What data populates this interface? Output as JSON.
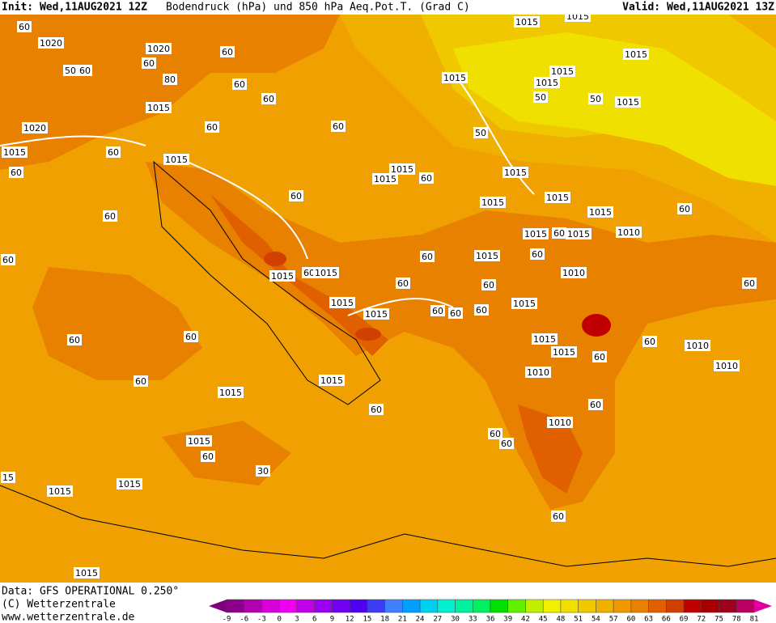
{
  "header": {
    "init": "Init: Wed,11AUG2021 12Z",
    "title": "Bodendruck (hPa) und 850 hPa Aeq.Pot.T. (Grad C)",
    "valid": "Valid: Wed,11AUG2021 13Z"
  },
  "footer": {
    "data": "Data: GFS OPERATIONAL 0.250°",
    "copyright": "(C) Wetterzentrale",
    "url": "www.wetterzentrale.de"
  },
  "contour_labels": [
    "1015",
    "1015",
    "1015",
    "1020",
    "60",
    "1020",
    "60",
    "50",
    "60",
    "80",
    "60",
    "60",
    "1015",
    "1015",
    "1015",
    "50",
    "50",
    "1015",
    "1015",
    "60",
    "60",
    "1020",
    "60",
    "50",
    "1015",
    "60",
    "1015",
    "60",
    "1015",
    "1015",
    "60",
    "1015",
    "60",
    "1015",
    "1015",
    "60",
    "1015",
    "60",
    "1010",
    "1015",
    "60",
    "1015",
    "60",
    "1015",
    "60",
    "60",
    "1015",
    "60",
    "1015",
    "1010",
    "60",
    "60",
    "60",
    "1015",
    "1015",
    "1015",
    "60",
    "60",
    "60",
    "60",
    "60",
    "1015",
    "1015",
    "60",
    "1010",
    "60",
    "1010",
    "1010",
    "60",
    "1015",
    "1015",
    "60",
    "60",
    "1010",
    "60",
    "60",
    "1015",
    "60",
    "30",
    "15",
    "1015",
    "1015",
    "60",
    "1015"
  ],
  "colorbar": {
    "ticks": [
      -9,
      -6,
      -3,
      0,
      3,
      6,
      9,
      12,
      15,
      18,
      21,
      24,
      27,
      30,
      33,
      36,
      39,
      42,
      45,
      48,
      51,
      54,
      57,
      60,
      63,
      66,
      69,
      72,
      75,
      78,
      81
    ],
    "colors": [
      "#8b008b",
      "#b000b0",
      "#d800d8",
      "#f000f0",
      "#c000e8",
      "#9a00f0",
      "#7000f0",
      "#5000f0",
      "#3c3cf0",
      "#4080ff",
      "#00a0ff",
      "#00d0f0",
      "#00f0d0",
      "#00f0a0",
      "#00f060",
      "#00e000",
      "#60f000",
      "#c0f000",
      "#f0f000",
      "#f0e000",
      "#f0c800",
      "#f0b000",
      "#f09800",
      "#e88000",
      "#e06000",
      "#d04000",
      "#c00000",
      "#a80000",
      "#a00020",
      "#b80060"
    ],
    "low_color": "#800080",
    "high_color": "#e000a0"
  }
}
